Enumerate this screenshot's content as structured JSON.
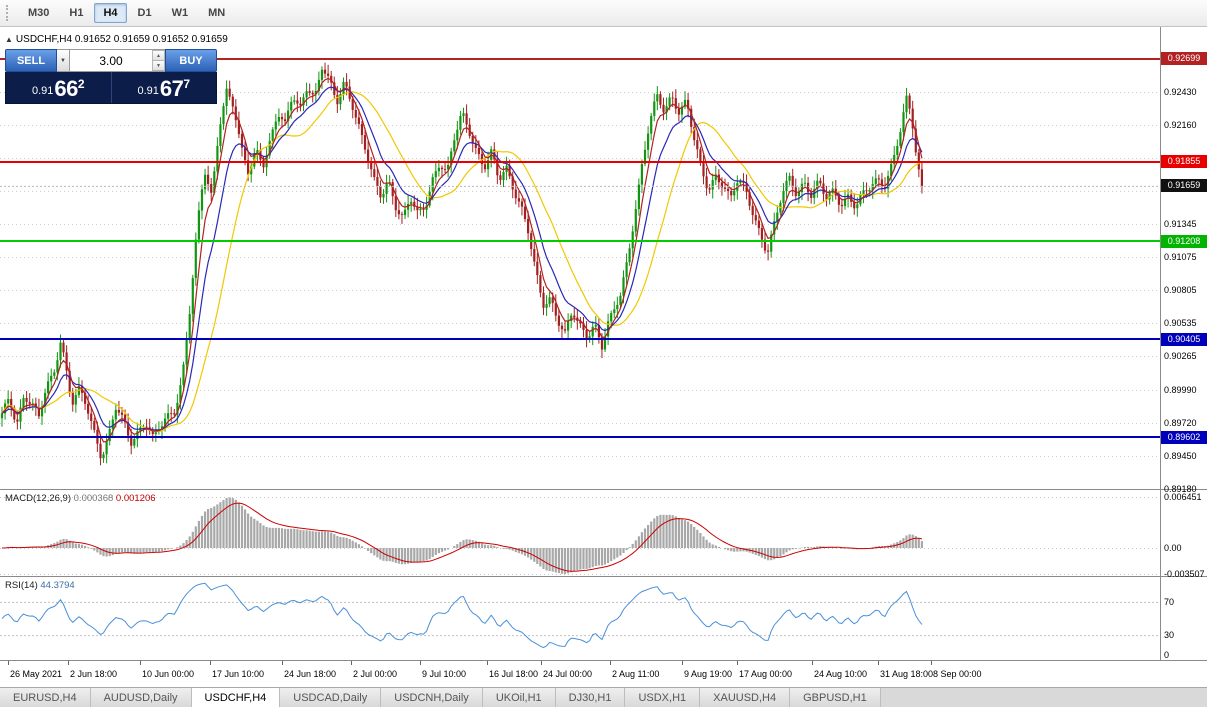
{
  "toolbar": {
    "timeframes": [
      {
        "label": "M30",
        "active": false
      },
      {
        "label": "H1",
        "active": false
      },
      {
        "label": "H4",
        "active": true
      },
      {
        "label": "D1",
        "active": false
      },
      {
        "label": "W1",
        "active": false
      },
      {
        "label": "MN",
        "active": false
      }
    ]
  },
  "chart_header": {
    "collapse_icon": "▲",
    "symbol": "USDCHF,H4",
    "ohlc": "0.91652 0.91659 0.91652 0.91659"
  },
  "trade_panel": {
    "sell_label": "SELL",
    "buy_label": "BUY",
    "volume": "3.00",
    "dropdown_icon": "▼",
    "spin_up_icon": "▲",
    "spin_down_icon": "▼",
    "sell_price": {
      "small": "0.91",
      "big": "66",
      "sup": "2"
    },
    "buy_price": {
      "small": "0.91",
      "big": "67",
      "sup": "7"
    }
  },
  "price_axis": {
    "grid_labels": [
      "0.92430",
      "0.92160",
      "0.91345",
      "0.91075",
      "0.90805",
      "0.90535",
      "0.90265",
      "0.89990",
      "0.89720",
      "0.89450",
      "0.89180"
    ],
    "badges": [
      {
        "label": "0.92699",
        "value": 0.92699,
        "bg": "#b22222"
      },
      {
        "label": "0.91855",
        "value": 0.91855,
        "bg": "#e80000"
      },
      {
        "label": "0.91659",
        "value": 0.91659,
        "bg": "#111111"
      },
      {
        "label": "0.91208",
        "value": 0.91208,
        "bg": "#00b400"
      },
      {
        "label": "0.90405",
        "value": 0.90405,
        "bg": "#0000bb"
      },
      {
        "label": "0.89602",
        "value": 0.89602,
        "bg": "#0000bb"
      }
    ]
  },
  "levels": [
    {
      "price": 0.92699,
      "color": "#b22222",
      "width": 2
    },
    {
      "price": 0.91855,
      "color": "#e80000",
      "width": 2
    },
    {
      "price": 0.91208,
      "color": "#00cc00",
      "width": 2
    },
    {
      "price": 0.90405,
      "color": "#0000bb",
      "width": 2
    },
    {
      "price": 0.89602,
      "color": "#0000bb",
      "width": 2
    }
  ],
  "macd_panel": {
    "title": "MACD(12,26,9)",
    "value_main": "0.000368",
    "value_signal": "0.001206",
    "axis_labels": [
      {
        "label": "0.006451",
        "y": 7
      },
      {
        "label": "0.00",
        "y": 58
      },
      {
        "label": "-0.003507",
        "y": 84
      }
    ],
    "histogram_color": "#a8a8a8",
    "signal_color": "#cc0000"
  },
  "rsi_panel": {
    "title": "RSI(14)",
    "value": "44.3794",
    "axis_labels": [
      {
        "label": "70",
        "v": 70
      },
      {
        "label": "30",
        "v": 30
      },
      {
        "label": "0",
        "v": 0
      }
    ],
    "level_lines": [
      70,
      30
    ],
    "line_color": "#4a90d9"
  },
  "time_axis": [
    {
      "label": "26 May 2021",
      "f": 0.007
    },
    {
      "label": "2 Jun 18:00",
      "f": 0.059
    },
    {
      "label": "10 Jun 00:00",
      "f": 0.121
    },
    {
      "label": "17 Jun 10:00",
      "f": 0.181
    },
    {
      "label": "24 Jun 18:00",
      "f": 0.243
    },
    {
      "label": "2 Jul 00:00",
      "f": 0.303
    },
    {
      "label": "9 Jul 10:00",
      "f": 0.362
    },
    {
      "label": "16 Jul 18:00",
      "f": 0.42
    },
    {
      "label": "24 Jul 00:00",
      "f": 0.466
    },
    {
      "label": "2 Aug 11:00",
      "f": 0.526
    },
    {
      "label": "9 Aug 19:00",
      "f": 0.588
    },
    {
      "label": "17 Aug 00:00",
      "f": 0.635
    },
    {
      "label": "24 Aug 10:00",
      "f": 0.7
    },
    {
      "label": "31 Aug 18:00",
      "f": 0.757
    },
    {
      "label": "8 Sep 00:00",
      "f": 0.803
    }
  ],
  "tabs": [
    {
      "label": "EURUSD,H4",
      "active": false
    },
    {
      "label": "AUDUSD,Daily",
      "active": false
    },
    {
      "label": "USDCHF,H4",
      "active": true
    },
    {
      "label": "USDCAD,Daily",
      "active": false
    },
    {
      "label": "USDCNH,Daily",
      "active": false
    },
    {
      "label": "UKOil,H1",
      "active": false
    },
    {
      "label": "DJ30,H1",
      "active": false
    },
    {
      "label": "USDX,H1",
      "active": false
    },
    {
      "label": "XAUUSD,H4",
      "active": false
    },
    {
      "label": "GBPUSD,H1",
      "active": false
    }
  ],
  "chart_data": {
    "type": "candlestick",
    "symbol": "USDCHF",
    "period": "H4",
    "current_ohlc": {
      "open": 0.91652,
      "high": 0.91659,
      "low": 0.91652,
      "close": 0.91659
    },
    "current_close": 0.91659,
    "price_range": {
      "min": 0.8917,
      "max": 0.9296
    },
    "grid_levels": [
      0.9243,
      0.9216,
      0.9189,
      0.9162,
      0.91345,
      0.91075,
      0.90805,
      0.90535,
      0.90265,
      0.8999,
      0.8972,
      0.8945,
      0.8918
    ],
    "candles": 300,
    "plot_span": 923,
    "color_up": "#129612",
    "color_down": "#a32020",
    "bid_line_color": "#b8b8b8",
    "moving_averages": [
      {
        "type": "sma",
        "period": 21,
        "color": "#f0c800"
      },
      {
        "type": "ema",
        "period": 11,
        "color": "#2828b8"
      },
      {
        "type": "ema",
        "period": 5,
        "color": "#b22222"
      }
    ],
    "horizontal_levels": [
      0.92699,
      0.91855,
      0.91208,
      0.90405,
      0.89602
    ],
    "close_anchors": [
      [
        0.0,
        0.8978
      ],
      [
        0.008,
        0.8992
      ],
      [
        0.016,
        0.8972
      ],
      [
        0.024,
        0.8995
      ],
      [
        0.032,
        0.8988
      ],
      [
        0.04,
        0.8975
      ],
      [
        0.048,
        0.9
      ],
      [
        0.056,
        0.9012
      ],
      [
        0.064,
        0.9042
      ],
      [
        0.07,
        0.9015
      ],
      [
        0.076,
        0.8988
      ],
      [
        0.084,
        0.8998
      ],
      [
        0.092,
        0.8985
      ],
      [
        0.1,
        0.8965
      ],
      [
        0.108,
        0.8945
      ],
      [
        0.116,
        0.8962
      ],
      [
        0.124,
        0.8985
      ],
      [
        0.132,
        0.8972
      ],
      [
        0.14,
        0.8955
      ],
      [
        0.148,
        0.8965
      ],
      [
        0.156,
        0.8975
      ],
      [
        0.164,
        0.896
      ],
      [
        0.172,
        0.8968
      ],
      [
        0.18,
        0.8975
      ],
      [
        0.188,
        0.8982
      ],
      [
        0.196,
        0.901
      ],
      [
        0.204,
        0.9065
      ],
      [
        0.212,
        0.913
      ],
      [
        0.22,
        0.9178
      ],
      [
        0.228,
        0.9155
      ],
      [
        0.236,
        0.9215
      ],
      [
        0.244,
        0.9245
      ],
      [
        0.252,
        0.9232
      ],
      [
        0.26,
        0.9195
      ],
      [
        0.268,
        0.9175
      ],
      [
        0.276,
        0.9195
      ],
      [
        0.284,
        0.9185
      ],
      [
        0.292,
        0.9205
      ],
      [
        0.3,
        0.9226
      ],
      [
        0.308,
        0.9214
      ],
      [
        0.316,
        0.924
      ],
      [
        0.324,
        0.9229
      ],
      [
        0.332,
        0.925
      ],
      [
        0.34,
        0.9238
      ],
      [
        0.348,
        0.9263
      ],
      [
        0.356,
        0.925
      ],
      [
        0.364,
        0.9234
      ],
      [
        0.372,
        0.9252
      ],
      [
        0.38,
        0.9236
      ],
      [
        0.388,
        0.9214
      ],
      [
        0.396,
        0.9192
      ],
      [
        0.404,
        0.917
      ],
      [
        0.412,
        0.9158
      ],
      [
        0.42,
        0.9172
      ],
      [
        0.428,
        0.915
      ],
      [
        0.436,
        0.9138
      ],
      [
        0.444,
        0.9155
      ],
      [
        0.452,
        0.9142
      ],
      [
        0.46,
        0.915
      ],
      [
        0.468,
        0.9172
      ],
      [
        0.476,
        0.9185
      ],
      [
        0.484,
        0.9175
      ],
      [
        0.492,
        0.9205
      ],
      [
        0.5,
        0.9226
      ],
      [
        0.508,
        0.9212
      ],
      [
        0.516,
        0.9195
      ],
      [
        0.524,
        0.918
      ],
      [
        0.532,
        0.9192
      ],
      [
        0.54,
        0.917
      ],
      [
        0.548,
        0.9182
      ],
      [
        0.556,
        0.9165
      ],
      [
        0.564,
        0.915
      ],
      [
        0.572,
        0.9128
      ],
      [
        0.58,
        0.9095
      ],
      [
        0.588,
        0.9068
      ],
      [
        0.596,
        0.9075
      ],
      [
        0.604,
        0.9058
      ],
      [
        0.612,
        0.9045
      ],
      [
        0.62,
        0.9062
      ],
      [
        0.628,
        0.905
      ],
      [
        0.636,
        0.9042
      ],
      [
        0.644,
        0.9055
      ],
      [
        0.652,
        0.9035
      ],
      [
        0.658,
        0.9052
      ],
      [
        0.664,
        0.906
      ],
      [
        0.672,
        0.9075
      ],
      [
        0.68,
        0.9105
      ],
      [
        0.688,
        0.9145
      ],
      [
        0.696,
        0.9185
      ],
      [
        0.704,
        0.9218
      ],
      [
        0.712,
        0.9238
      ],
      [
        0.72,
        0.9226
      ],
      [
        0.728,
        0.924
      ],
      [
        0.736,
        0.9228
      ],
      [
        0.744,
        0.9236
      ],
      [
        0.752,
        0.9205
      ],
      [
        0.76,
        0.9178
      ],
      [
        0.768,
        0.9162
      ],
      [
        0.776,
        0.9175
      ],
      [
        0.784,
        0.9168
      ],
      [
        0.792,
        0.9155
      ],
      [
        0.8,
        0.917
      ],
      [
        0.808,
        0.9162
      ],
      [
        0.816,
        0.9145
      ],
      [
        0.824,
        0.9128
      ],
      [
        0.832,
        0.9112
      ],
      [
        0.84,
        0.9135
      ],
      [
        0.848,
        0.9158
      ],
      [
        0.856,
        0.9172
      ],
      [
        0.864,
        0.916
      ],
      [
        0.872,
        0.917
      ],
      [
        0.88,
        0.9158
      ],
      [
        0.888,
        0.9168
      ],
      [
        0.896,
        0.9155
      ],
      [
        0.904,
        0.9162
      ],
      [
        0.912,
        0.9152
      ],
      [
        0.92,
        0.9158
      ],
      [
        0.928,
        0.9148
      ],
      [
        0.936,
        0.9158
      ],
      [
        0.944,
        0.9165
      ],
      [
        0.952,
        0.9172
      ],
      [
        0.96,
        0.9168
      ],
      [
        0.968,
        0.9185
      ],
      [
        0.976,
        0.9208
      ],
      [
        0.984,
        0.9238
      ],
      [
        0.99,
        0.9215
      ],
      [
        0.995,
        0.9185
      ],
      [
        1.0,
        0.9166
      ]
    ]
  }
}
